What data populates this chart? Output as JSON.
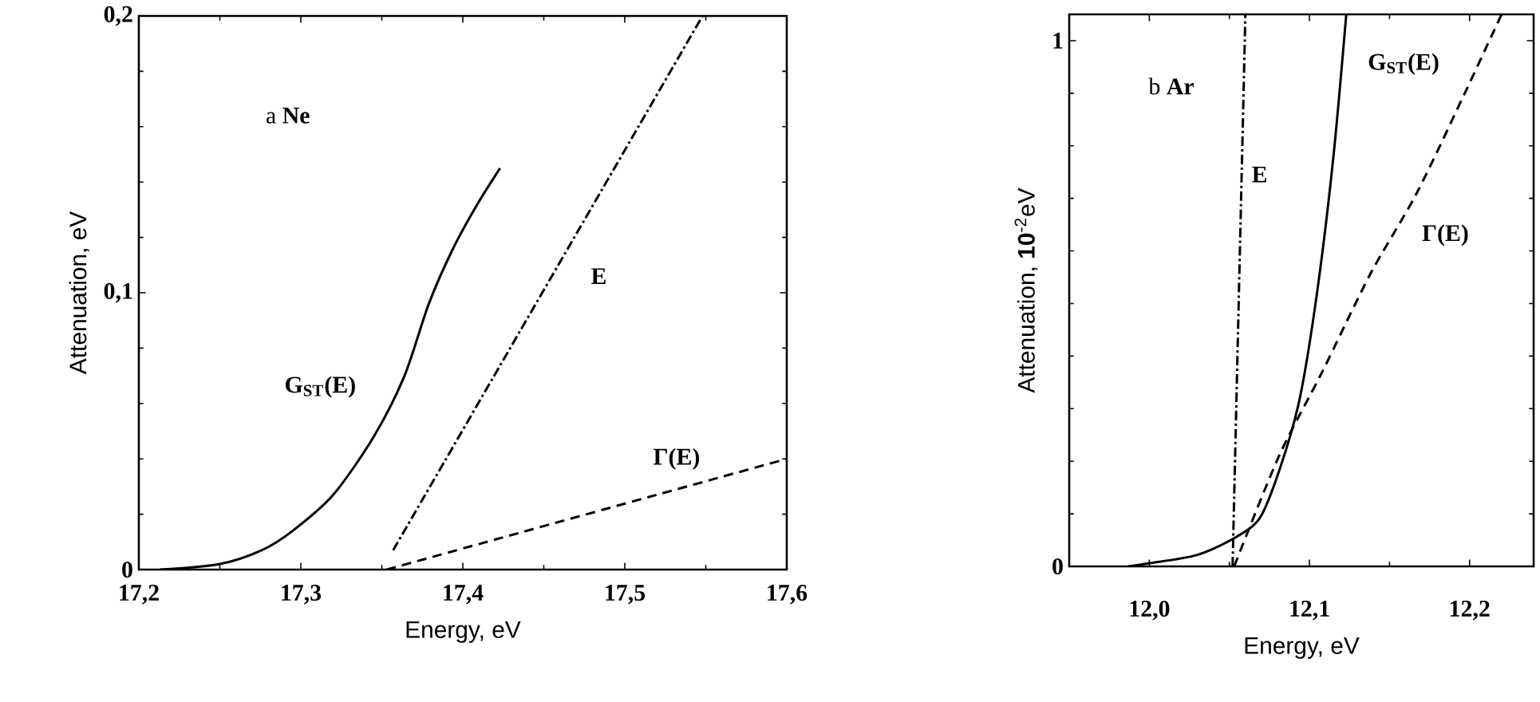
{
  "chart_data": [
    {
      "type": "line",
      "xlabel": "Energy, eV",
      "ylabel": "Attenuation, eV",
      "xlim": [
        17.2,
        17.6
      ],
      "ylim": [
        0,
        0.2
      ],
      "xticks": [
        {
          "value": 17.2,
          "label": "17,2"
        },
        {
          "value": 17.3,
          "label": "17,3"
        },
        {
          "value": 17.4,
          "label": "17,4"
        },
        {
          "value": 17.5,
          "label": "17,5"
        },
        {
          "value": 17.6,
          "label": "17,6"
        }
      ],
      "yticks": [
        0,
        {
          "value": 0.1,
          "label": "0,1"
        },
        {
          "value": 0.2,
          "label": "0,2"
        }
      ],
      "series": [
        {
          "name": "G$_{ST}$(E)",
          "color": "#000000",
          "line_style": "solid",
          "x": [
            17.213,
            17.25,
            17.276,
            17.295,
            17.32,
            17.345,
            17.364,
            17.379,
            17.394,
            17.409,
            17.423
          ],
          "values": [
            0,
            0.002,
            0.007,
            0.014,
            0.027,
            0.048,
            0.07,
            0.096,
            0.116,
            0.132,
            0.145
          ]
        },
        {
          "name": "E",
          "color": "#000000",
          "line_style": "dashdot",
          "x": [
            17.357,
            17.548
          ],
          "values": [
            0.007,
            0.2
          ]
        },
        {
          "name": "Γ(E)",
          "color": "#000000",
          "line_style": "dashed",
          "x": [
            17.353,
            17.6
          ],
          "values": [
            0,
            0.04
          ]
        }
      ],
      "annotations": [
        "a **Ne**"
      ]
    },
    {
      "type": "line",
      "xlabel": "Energy, eV",
      "ylabel": "Attenuation, **10**$^{-2}$eV",
      "xlim": [
        11.95,
        12.24
      ],
      "ylim": [
        0,
        1.05
      ],
      "xticks": [
        {
          "value": 12.0,
          "label": "12,0"
        },
        {
          "value": 12.1,
          "label": "12,1"
        },
        {
          "value": 12.2,
          "label": "12,2"
        }
      ],
      "yticks": [
        0,
        1
      ],
      "series": [
        {
          "name": "G$_{ST}$(E)",
          "color": "#000000",
          "line_style": "solid",
          "x": [
            11.987,
            12.0,
            12.029,
            12.052,
            12.069,
            12.082,
            12.094,
            12.105,
            12.115,
            12.123
          ],
          "values": [
            0,
            0.006,
            0.021,
            0.052,
            0.092,
            0.19,
            0.32,
            0.526,
            0.78,
            1.05
          ]
        },
        {
          "name": "E",
          "color": "#000000",
          "line_style": "dashdot",
          "x": [
            12.052,
            12.06
          ],
          "values": [
            0,
            1.05
          ]
        },
        {
          "name": "Γ(E)",
          "color": "#000000",
          "line_style": "dashed",
          "x": [
            12.053,
            12.081,
            12.108,
            12.138,
            12.167,
            12.197,
            12.22
          ],
          "values": [
            0,
            0.21,
            0.37,
            0.556,
            0.71,
            0.9,
            1.05
          ]
        }
      ],
      "annotations": [
        "b **Ar**"
      ]
    }
  ]
}
